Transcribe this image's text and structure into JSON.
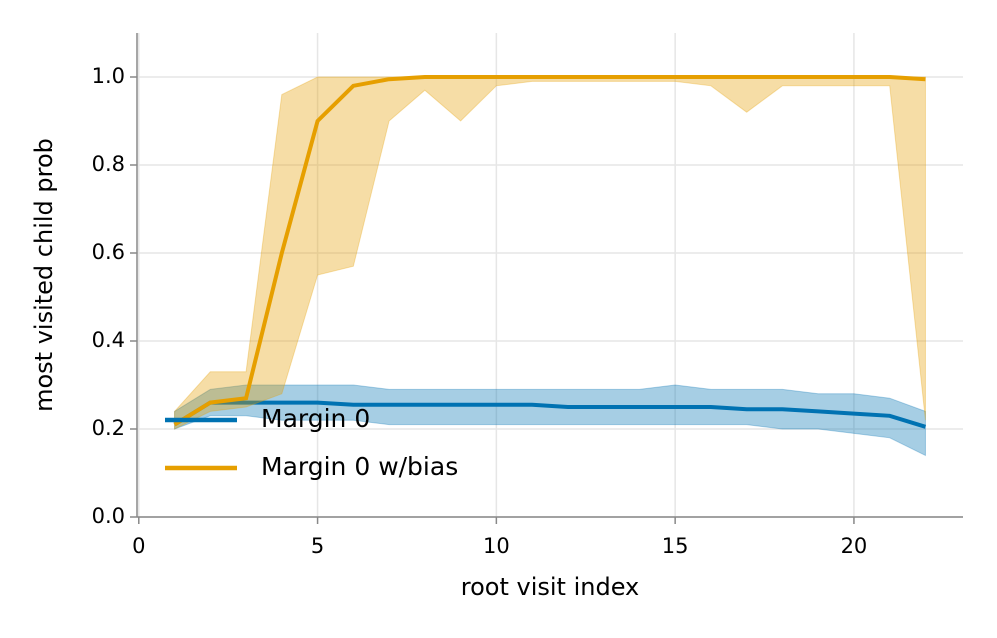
{
  "chart_data": {
    "type": "line",
    "xlabel": "root visit index",
    "ylabel": "most visited child prob",
    "x": [
      1,
      2,
      3,
      4,
      5,
      6,
      7,
      8,
      9,
      10,
      11,
      12,
      13,
      14,
      15,
      16,
      17,
      18,
      19,
      20,
      21,
      22
    ],
    "xlim": [
      -0.05,
      23.05
    ],
    "xticks": [
      0,
      5,
      10,
      15,
      20
    ],
    "ylim": [
      0,
      1.1
    ],
    "yticks": [
      {
        "value": 0,
        "label": "0.0"
      },
      {
        "value": 0.2,
        "label": "0.2"
      },
      {
        "value": 0.4,
        "label": "0.4"
      },
      {
        "value": 0.6,
        "label": "0.6"
      },
      {
        "value": 0.8,
        "label": "0.8"
      },
      {
        "value": 1.0,
        "label": "1.0"
      }
    ],
    "grid": true,
    "legend": "lower left",
    "series": [
      {
        "name": "Margin 0",
        "color": "#0072b2",
        "values": [
          0.21,
          0.26,
          0.26,
          0.26,
          0.26,
          0.255,
          0.255,
          0.255,
          0.255,
          0.255,
          0.255,
          0.25,
          0.25,
          0.25,
          0.25,
          0.25,
          0.245,
          0.245,
          0.24,
          0.235,
          0.23,
          0.205
        ],
        "range_high": [
          0.24,
          0.29,
          0.3,
          0.3,
          0.3,
          0.3,
          0.29,
          0.29,
          0.29,
          0.29,
          0.29,
          0.29,
          0.29,
          0.29,
          0.3,
          0.29,
          0.29,
          0.29,
          0.28,
          0.28,
          0.27,
          0.24
        ],
        "range_low": [
          0.2,
          0.23,
          0.23,
          0.22,
          0.22,
          0.22,
          0.21,
          0.21,
          0.21,
          0.21,
          0.21,
          0.21,
          0.21,
          0.21,
          0.21,
          0.21,
          0.21,
          0.2,
          0.2,
          0.19,
          0.18,
          0.14
        ]
      },
      {
        "name": "Margin 0 w/bias",
        "color": "#e69f00",
        "values": [
          0.21,
          0.26,
          0.27,
          0.6,
          0.9,
          0.98,
          0.995,
          1.0,
          1.0,
          1.0,
          1.0,
          1.0,
          1.0,
          1.0,
          1.0,
          1.0,
          1.0,
          1.0,
          1.0,
          1.0,
          1.0,
          0.995
        ],
        "range_high": [
          0.24,
          0.33,
          0.33,
          0.96,
          1.0,
          1.0,
          1.0,
          1.0,
          1.0,
          1.0,
          1.0,
          1.0,
          1.0,
          1.0,
          1.0,
          1.0,
          1.0,
          1.0,
          1.0,
          1.0,
          1.0,
          1.0
        ],
        "range_low": [
          0.2,
          0.24,
          0.25,
          0.28,
          0.55,
          0.57,
          0.9,
          0.97,
          0.9,
          0.98,
          0.99,
          0.99,
          0.99,
          0.99,
          0.99,
          0.98,
          0.92,
          0.98,
          0.98,
          0.98,
          0.98,
          0.22
        ]
      }
    ]
  }
}
